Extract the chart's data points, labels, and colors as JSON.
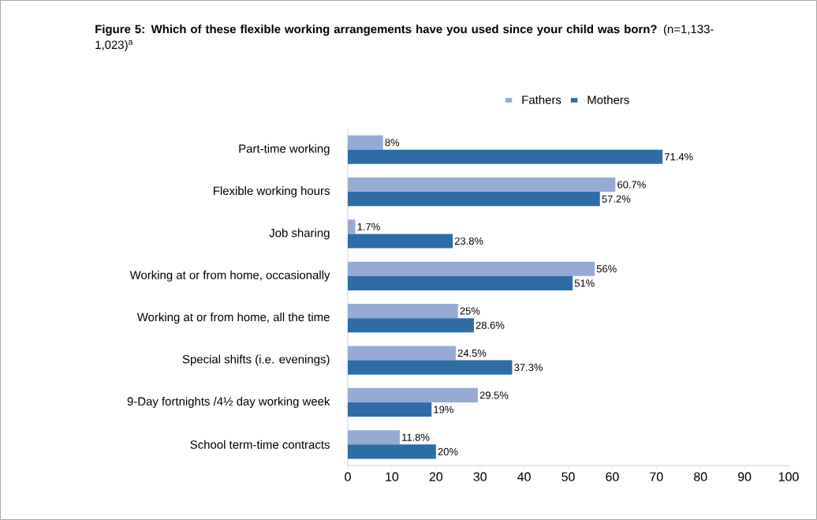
{
  "chart_data": {
    "type": "bar",
    "orientation": "horizontal",
    "title": "**Figure 5: Which of these flexible working arrangements have you used since your child was born?** (n=1,133-1,023)$^{a}$",
    "categories": [
      "Part-time working",
      "Flexible working hours",
      "Job sharing",
      "Working at or from home, occasionally",
      "Working at or from home, all the time",
      "Special shifts (i.e. evenings)",
      "9-Day fortnights /4½ day working week",
      "School term-time contracts"
    ],
    "series": [
      {
        "name": "Fathers",
        "color": "#95abd5",
        "values": [
          8,
          60.7,
          1.7,
          56,
          25,
          24.5,
          29.5,
          11.8
        ],
        "value_labels": [
          "8%",
          "60.7%",
          "1.7%",
          "56%",
          "25%",
          "24.5%",
          "29.5%",
          "11.8%"
        ]
      },
      {
        "name": "Mothers",
        "color": "#2e6ca6",
        "values": [
          71.4,
          57.2,
          23.8,
          51,
          28.6,
          37.3,
          19,
          20
        ],
        "value_labels": [
          "71.4%",
          "57.2%",
          "23.8%",
          "51%",
          "28.6%",
          "37.3%",
          "19%",
          "20%"
        ]
      }
    ],
    "xlim": [
      0,
      100
    ],
    "xticks": [
      0,
      10,
      20,
      30,
      40,
      50,
      60,
      70,
      80,
      90,
      100
    ],
    "grid": false,
    "legend": "top"
  }
}
